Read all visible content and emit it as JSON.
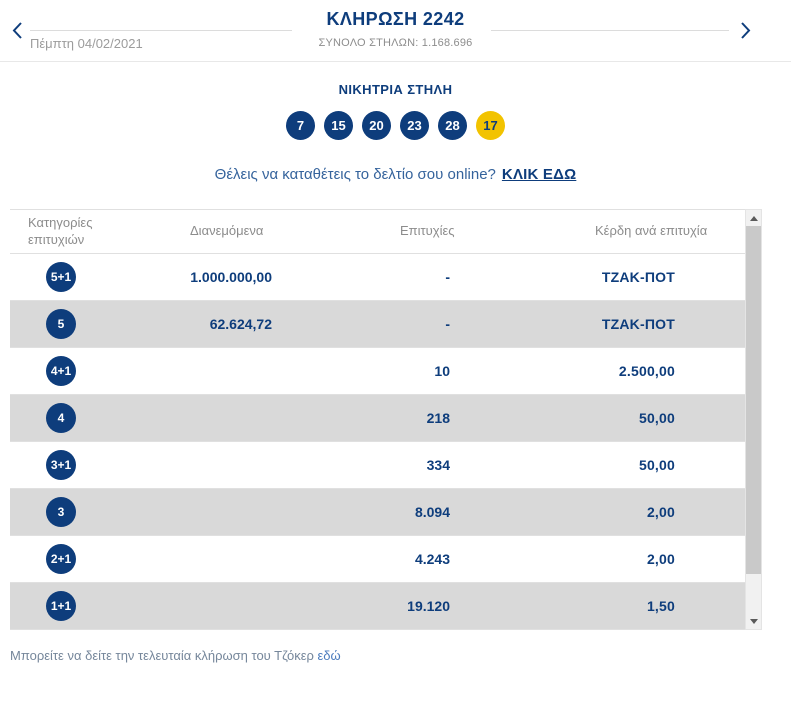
{
  "colors": {
    "primary_navy": "#0e3d7c",
    "joker_yellow": "#f2c300",
    "row_alt_gray": "#d9d9d9",
    "muted_gray": "#8d8d8d",
    "link_blue": "#4a7bbd",
    "footer_text": "#76879b"
  },
  "header": {
    "title": "ΚΛΗΡΩΣΗ 2242",
    "subtitle": "ΣΥΝΟΛΟ ΣΤΗΛΩΝ: 1.168.696",
    "date": "Πέμπτη 04/02/2021",
    "prev_icon": "chevron-left",
    "next_icon": "chevron-right"
  },
  "winning_column": {
    "label": "ΝΙΚΗΤΡΙΑ ΣΤΗΛΗ",
    "numbers": [
      "7",
      "15",
      "20",
      "23",
      "28"
    ],
    "joker_number": "17"
  },
  "cta": {
    "question": "Θέλεις να καταθέτεις το δελτίο σου online?",
    "link_label": "ΚΛΙΚ ΕΔΩ"
  },
  "results_table": {
    "headers": [
      "Κατηγορίες επιτυχιών",
      "Διανεμόμενα",
      "Επιτυχίες",
      "Κέρδη ανά επιτυχία"
    ],
    "rows": [
      {
        "category": "5+1",
        "distributed": "1.000.000,00",
        "successes": "-",
        "prize_per_success": "ΤΖΑΚ-ΠΟΤ"
      },
      {
        "category": "5",
        "distributed": "62.624,72",
        "successes": "-",
        "prize_per_success": "ΤΖΑΚ-ΠΟΤ"
      },
      {
        "category": "4+1",
        "distributed": "",
        "successes": "10",
        "prize_per_success": "2.500,00"
      },
      {
        "category": "4",
        "distributed": "",
        "successes": "218",
        "prize_per_success": "50,00"
      },
      {
        "category": "3+1",
        "distributed": "",
        "successes": "334",
        "prize_per_success": "50,00"
      },
      {
        "category": "3",
        "distributed": "",
        "successes": "8.094",
        "prize_per_success": "2,00"
      },
      {
        "category": "2+1",
        "distributed": "",
        "successes": "4.243",
        "prize_per_success": "2,00"
      },
      {
        "category": "1+1",
        "distributed": "",
        "successes": "19.120",
        "prize_per_success": "1,50"
      }
    ]
  },
  "footer": {
    "text": "Μπορείτε να δείτε την τελευταία κλήρωση του Τζόκερ",
    "link_label": "εδώ"
  }
}
